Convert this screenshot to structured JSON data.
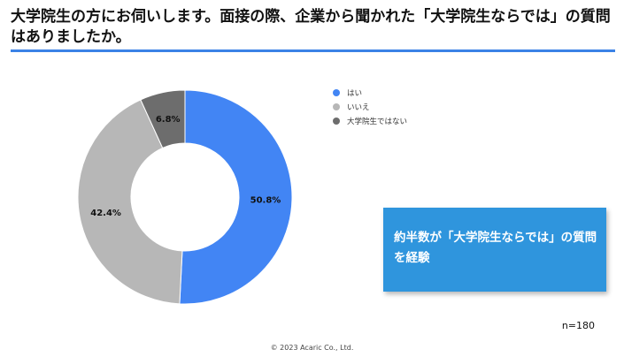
{
  "header": {
    "title": "大学院生の方にお伺いします。面接の際、企業から聞かれた「大学院生ならでは」の質問はありましたか。"
  },
  "chart_data": {
    "type": "pie",
    "categories": [
      "はい",
      "いいえ",
      "大学院生ではない"
    ],
    "values": [
      50.8,
      42.4,
      6.8
    ],
    "value_labels": [
      "50.8%",
      "42.4%",
      "6.8%"
    ],
    "colors": [
      "#4285f4",
      "#b7b7b7",
      "#6d6d6d"
    ],
    "legend_position": "top-right",
    "donut": true
  },
  "callout": {
    "text": "約半数が「大学院生ならでは」の質問を経験"
  },
  "footer": {
    "sample_size": "n=180",
    "copyright": "© 2023 Acaric Co., Ltd."
  }
}
